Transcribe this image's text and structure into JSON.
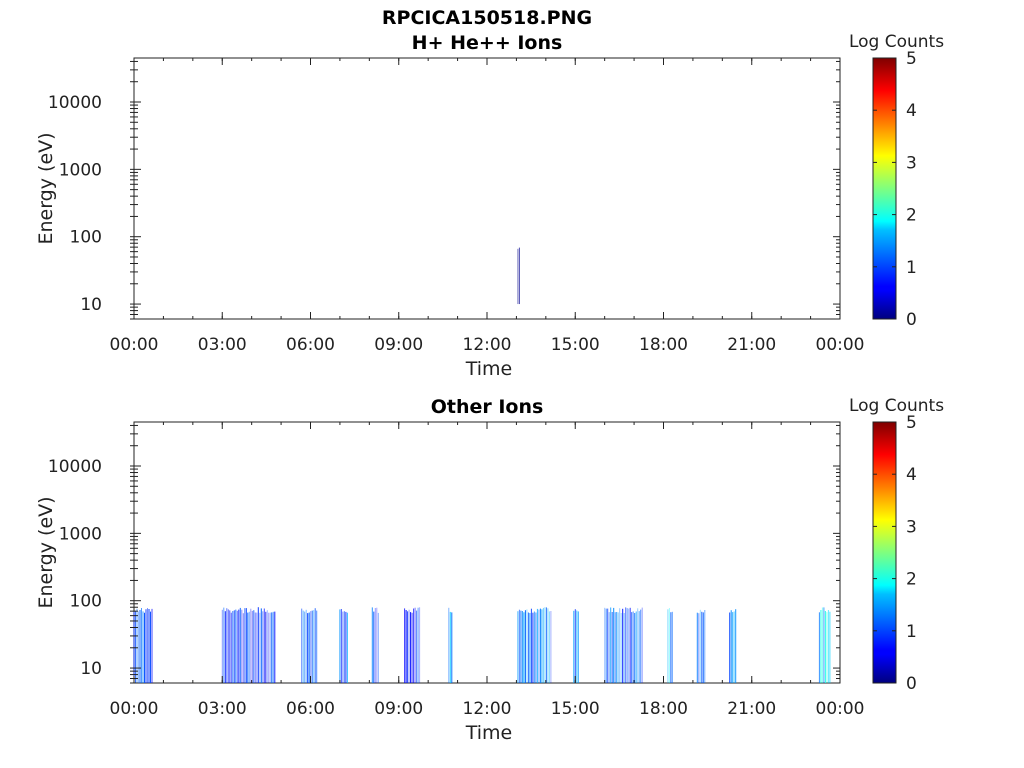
{
  "figure": {
    "title": "RPCICA150518.PNG"
  },
  "chart_data": [
    {
      "type": "heatmap",
      "title": "H+ He++ Ions",
      "xlabel": "Time",
      "ylabel": "Energy (eV)",
      "x_ticks": [
        "00:00",
        "03:00",
        "06:00",
        "09:00",
        "12:00",
        "15:00",
        "18:00",
        "21:00",
        "00:00"
      ],
      "x_range_hours": [
        0,
        24
      ],
      "y_scale": "log",
      "y_ticks": [
        "10",
        "100",
        "1000",
        "10000"
      ],
      "y_range_eV": [
        6,
        45000
      ],
      "colorbar": {
        "label": "Log Counts",
        "range": [
          0,
          5
        ],
        "ticks": [
          "0",
          "1",
          "2",
          "3",
          "4",
          "5"
        ],
        "colormap": "jet"
      },
      "bursts": [
        {
          "start_h": 13.05,
          "end_h": 13.12,
          "e_min": 10,
          "e_max": 80,
          "level": 0.1
        }
      ]
    },
    {
      "type": "heatmap",
      "title": "Other Ions",
      "xlabel": "Time",
      "ylabel": "Energy (eV)",
      "x_ticks": [
        "00:00",
        "03:00",
        "06:00",
        "09:00",
        "12:00",
        "15:00",
        "18:00",
        "21:00",
        "00:00"
      ],
      "x_range_hours": [
        0,
        24
      ],
      "y_scale": "log",
      "y_ticks": [
        "10",
        "100",
        "1000",
        "10000"
      ],
      "y_range_eV": [
        6,
        45000
      ],
      "colorbar": {
        "label": "Log Counts",
        "range": [
          0,
          5
        ],
        "ticks": [
          "0",
          "1",
          "2",
          "3",
          "4",
          "5"
        ],
        "colormap": "jet"
      },
      "bursts": [
        {
          "start_h": 0.0,
          "end_h": 0.65,
          "e_min": 6,
          "e_max": 80,
          "level": 1.0
        },
        {
          "start_h": 3.0,
          "end_h": 4.8,
          "e_min": 6,
          "e_max": 80,
          "level": 0.9
        },
        {
          "start_h": 5.7,
          "end_h": 6.25,
          "e_min": 6,
          "e_max": 80,
          "level": 1.1
        },
        {
          "start_h": 7.0,
          "end_h": 7.3,
          "e_min": 6,
          "e_max": 80,
          "level": 1.2
        },
        {
          "start_h": 8.1,
          "end_h": 8.35,
          "e_min": 6,
          "e_max": 80,
          "level": 1.0
        },
        {
          "start_h": 9.2,
          "end_h": 9.75,
          "e_min": 6,
          "e_max": 80,
          "level": 0.9
        },
        {
          "start_h": 10.7,
          "end_h": 10.85,
          "e_min": 6,
          "e_max": 80,
          "level": 1.3
        },
        {
          "start_h": 13.05,
          "end_h": 14.2,
          "e_min": 6,
          "e_max": 80,
          "level": 1.2
        },
        {
          "start_h": 14.95,
          "end_h": 15.15,
          "e_min": 6,
          "e_max": 80,
          "level": 1.2
        },
        {
          "start_h": 16.0,
          "end_h": 17.3,
          "e_min": 6,
          "e_max": 80,
          "level": 1.1
        },
        {
          "start_h": 18.15,
          "end_h": 18.35,
          "e_min": 6,
          "e_max": 80,
          "level": 1.8
        },
        {
          "start_h": 19.15,
          "end_h": 19.45,
          "e_min": 6,
          "e_max": 80,
          "level": 1.4
        },
        {
          "start_h": 20.25,
          "end_h": 20.5,
          "e_min": 6,
          "e_max": 80,
          "level": 1.2
        },
        {
          "start_h": 23.3,
          "end_h": 23.7,
          "e_min": 6,
          "e_max": 80,
          "level": 1.7
        }
      ]
    }
  ]
}
